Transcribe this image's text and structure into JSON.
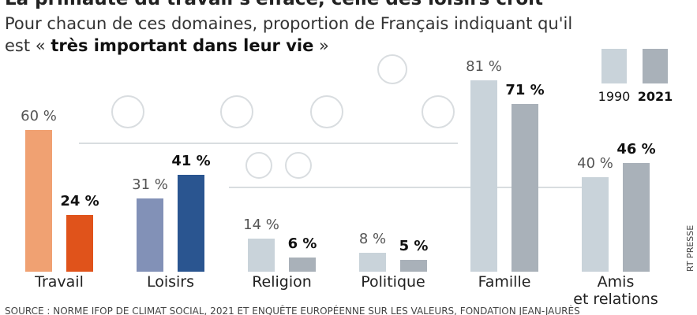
{
  "chart_data": {
    "type": "bar",
    "title": "La primauté du travail s'efface, celle des loisirs croît",
    "subtitle": {
      "start": "Pour chacun de ces domaines, proportion de Français indiquant qu'il est «",
      "emphasis": "très important dans leur vie",
      "end": "»"
    },
    "categories": [
      "Travail",
      "Loisirs",
      "Religion",
      "Politique",
      "Famille",
      "Amis\net relations"
    ],
    "series": [
      {
        "name": "1990",
        "color": "#c9d3da",
        "colors": [
          "#f0a172",
          "#8291b7",
          "#c9d3da",
          "#c9d3da",
          "#c9d3da",
          "#c9d3da"
        ],
        "values": [
          60,
          31,
          14,
          8,
          81,
          40
        ],
        "value_labels": [
          "60 %",
          "31 %",
          "14 %",
          "8 %",
          "81 %",
          "40 %"
        ]
      },
      {
        "name": "2021",
        "color": "#a9b1b9",
        "colors": [
          "#e0531b",
          "#2a5590",
          "#a9b1b9",
          "#a9b1b9",
          "#a9b1b9",
          "#a9b1b9"
        ],
        "values": [
          24,
          41,
          6,
          5,
          71,
          46
        ],
        "value_labels": [
          "24 %",
          "41 %",
          "6 %",
          "5 %",
          "71 %",
          "46 %"
        ]
      }
    ],
    "source": "SOURCE : NORME IFOP DE CLIMAT SOCIAL, 2021 ET ENQUÊTE EUROPÉENNE SUR LES VALEURS, FONDATION JEAN-JAURÈS",
    "credit": "RT PRESSE"
  }
}
